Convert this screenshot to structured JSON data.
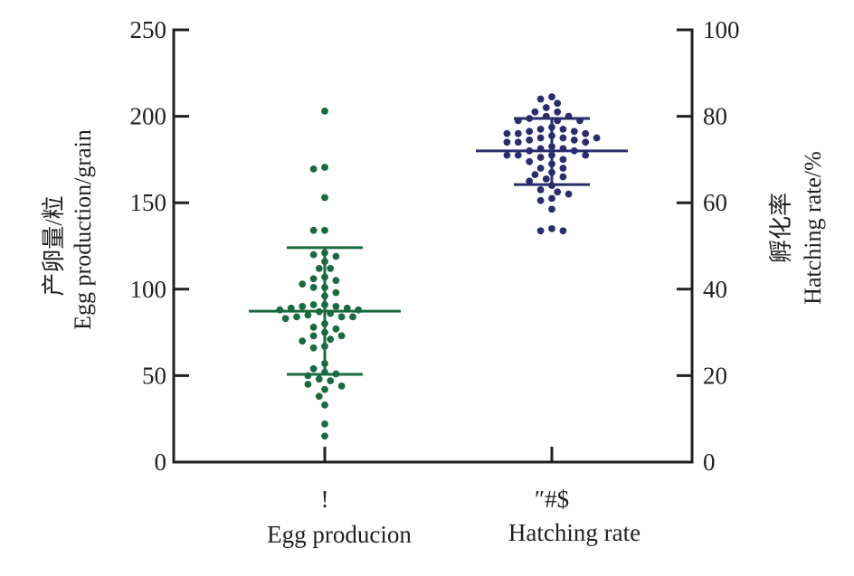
{
  "chart_data": {
    "type": "scatter",
    "subtype": "dot-plot-with-mean-sd",
    "title": "",
    "categories": [
      {
        "symbol_label": "!",
        "label": "Egg producion"
      },
      {
        "symbol_label": "″#$",
        "label": "Hatching rate"
      }
    ],
    "left_axis": {
      "label_cn": "产卵量/粒",
      "label_en": "Egg production/grain",
      "ylim": [
        0,
        250
      ],
      "ticks": [
        0,
        50,
        100,
        150,
        200,
        250
      ]
    },
    "right_axis": {
      "label_cn": "孵化率",
      "label_en": "Hatching rate/%",
      "ylim": [
        0,
        100
      ],
      "ticks": [
        0,
        20,
        40,
        60,
        80,
        100
      ]
    },
    "grid": false,
    "legend": "none",
    "series": [
      {
        "name": "Egg producion",
        "axis": "left",
        "color": "#1a6a3f",
        "mean": 87.3,
        "sd_upper": 124.0,
        "sd_lower": 50.7,
        "values": [
          203,
          170.5,
          169.5,
          153,
          134,
          134,
          121,
          120,
          119,
          116,
          112,
          112,
          107,
          106,
          105,
          103,
          101,
          101,
          98,
          96,
          91,
          91,
          90,
          90,
          89,
          89,
          88,
          88,
          87,
          86,
          85,
          84,
          84,
          84,
          83,
          80,
          78,
          77,
          75,
          73,
          73,
          71,
          70,
          67,
          66,
          57,
          54,
          52,
          51,
          50,
          48,
          47,
          45,
          44,
          42,
          38,
          33,
          22,
          15
        ]
      },
      {
        "name": "Hatching rate",
        "axis": "right",
        "color": "#2a2c6e",
        "mean": 72.0,
        "sd_upper": 79.5,
        "sd_lower": 64.2,
        "values": [
          84.5,
          84,
          83,
          82,
          81,
          81,
          80,
          80,
          79.5,
          79,
          79,
          79,
          77.5,
          77,
          77,
          76.5,
          76.5,
          76,
          76,
          76,
          75.5,
          75,
          75,
          75,
          74.5,
          74.5,
          74,
          74,
          74,
          73,
          72.5,
          72.5,
          72,
          72,
          71,
          71,
          71,
          71,
          70.5,
          70,
          69.5,
          69,
          68,
          68,
          67,
          66.5,
          66,
          65.5,
          65,
          64,
          63,
          62.5,
          62,
          61,
          60.5,
          58.5,
          54,
          53.5,
          53.5
        ]
      }
    ]
  }
}
